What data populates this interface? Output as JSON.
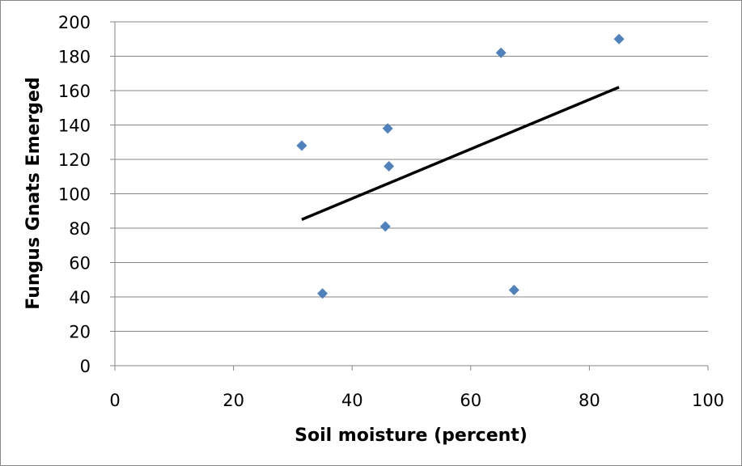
{
  "chart_data": {
    "type": "scatter",
    "title": "",
    "xlabel": "Soil moisture (percent)",
    "ylabel": "Fungus Gnats Emerged",
    "xlim": [
      0,
      100
    ],
    "ylim": [
      0,
      200
    ],
    "xticks": [
      0,
      20,
      40,
      60,
      80,
      100
    ],
    "yticks": [
      0,
      20,
      40,
      60,
      80,
      100,
      120,
      140,
      160,
      180,
      200
    ],
    "grid": "horizontal",
    "legend": "none",
    "marker": "diamond",
    "marker_color": "#4f81bd",
    "points": [
      {
        "x": 31.5,
        "y": 128
      },
      {
        "x": 35,
        "y": 42
      },
      {
        "x": 45.6,
        "y": 81
      },
      {
        "x": 46,
        "y": 138
      },
      {
        "x": 46.2,
        "y": 116
      },
      {
        "x": 65.1,
        "y": 182
      },
      {
        "x": 67.3,
        "y": 44
      },
      {
        "x": 85,
        "y": 190
      }
    ],
    "trendline": {
      "type": "linear",
      "color": "#000000",
      "from": {
        "x": 31.5,
        "y": 85
      },
      "to": {
        "x": 85,
        "y": 162
      }
    }
  }
}
